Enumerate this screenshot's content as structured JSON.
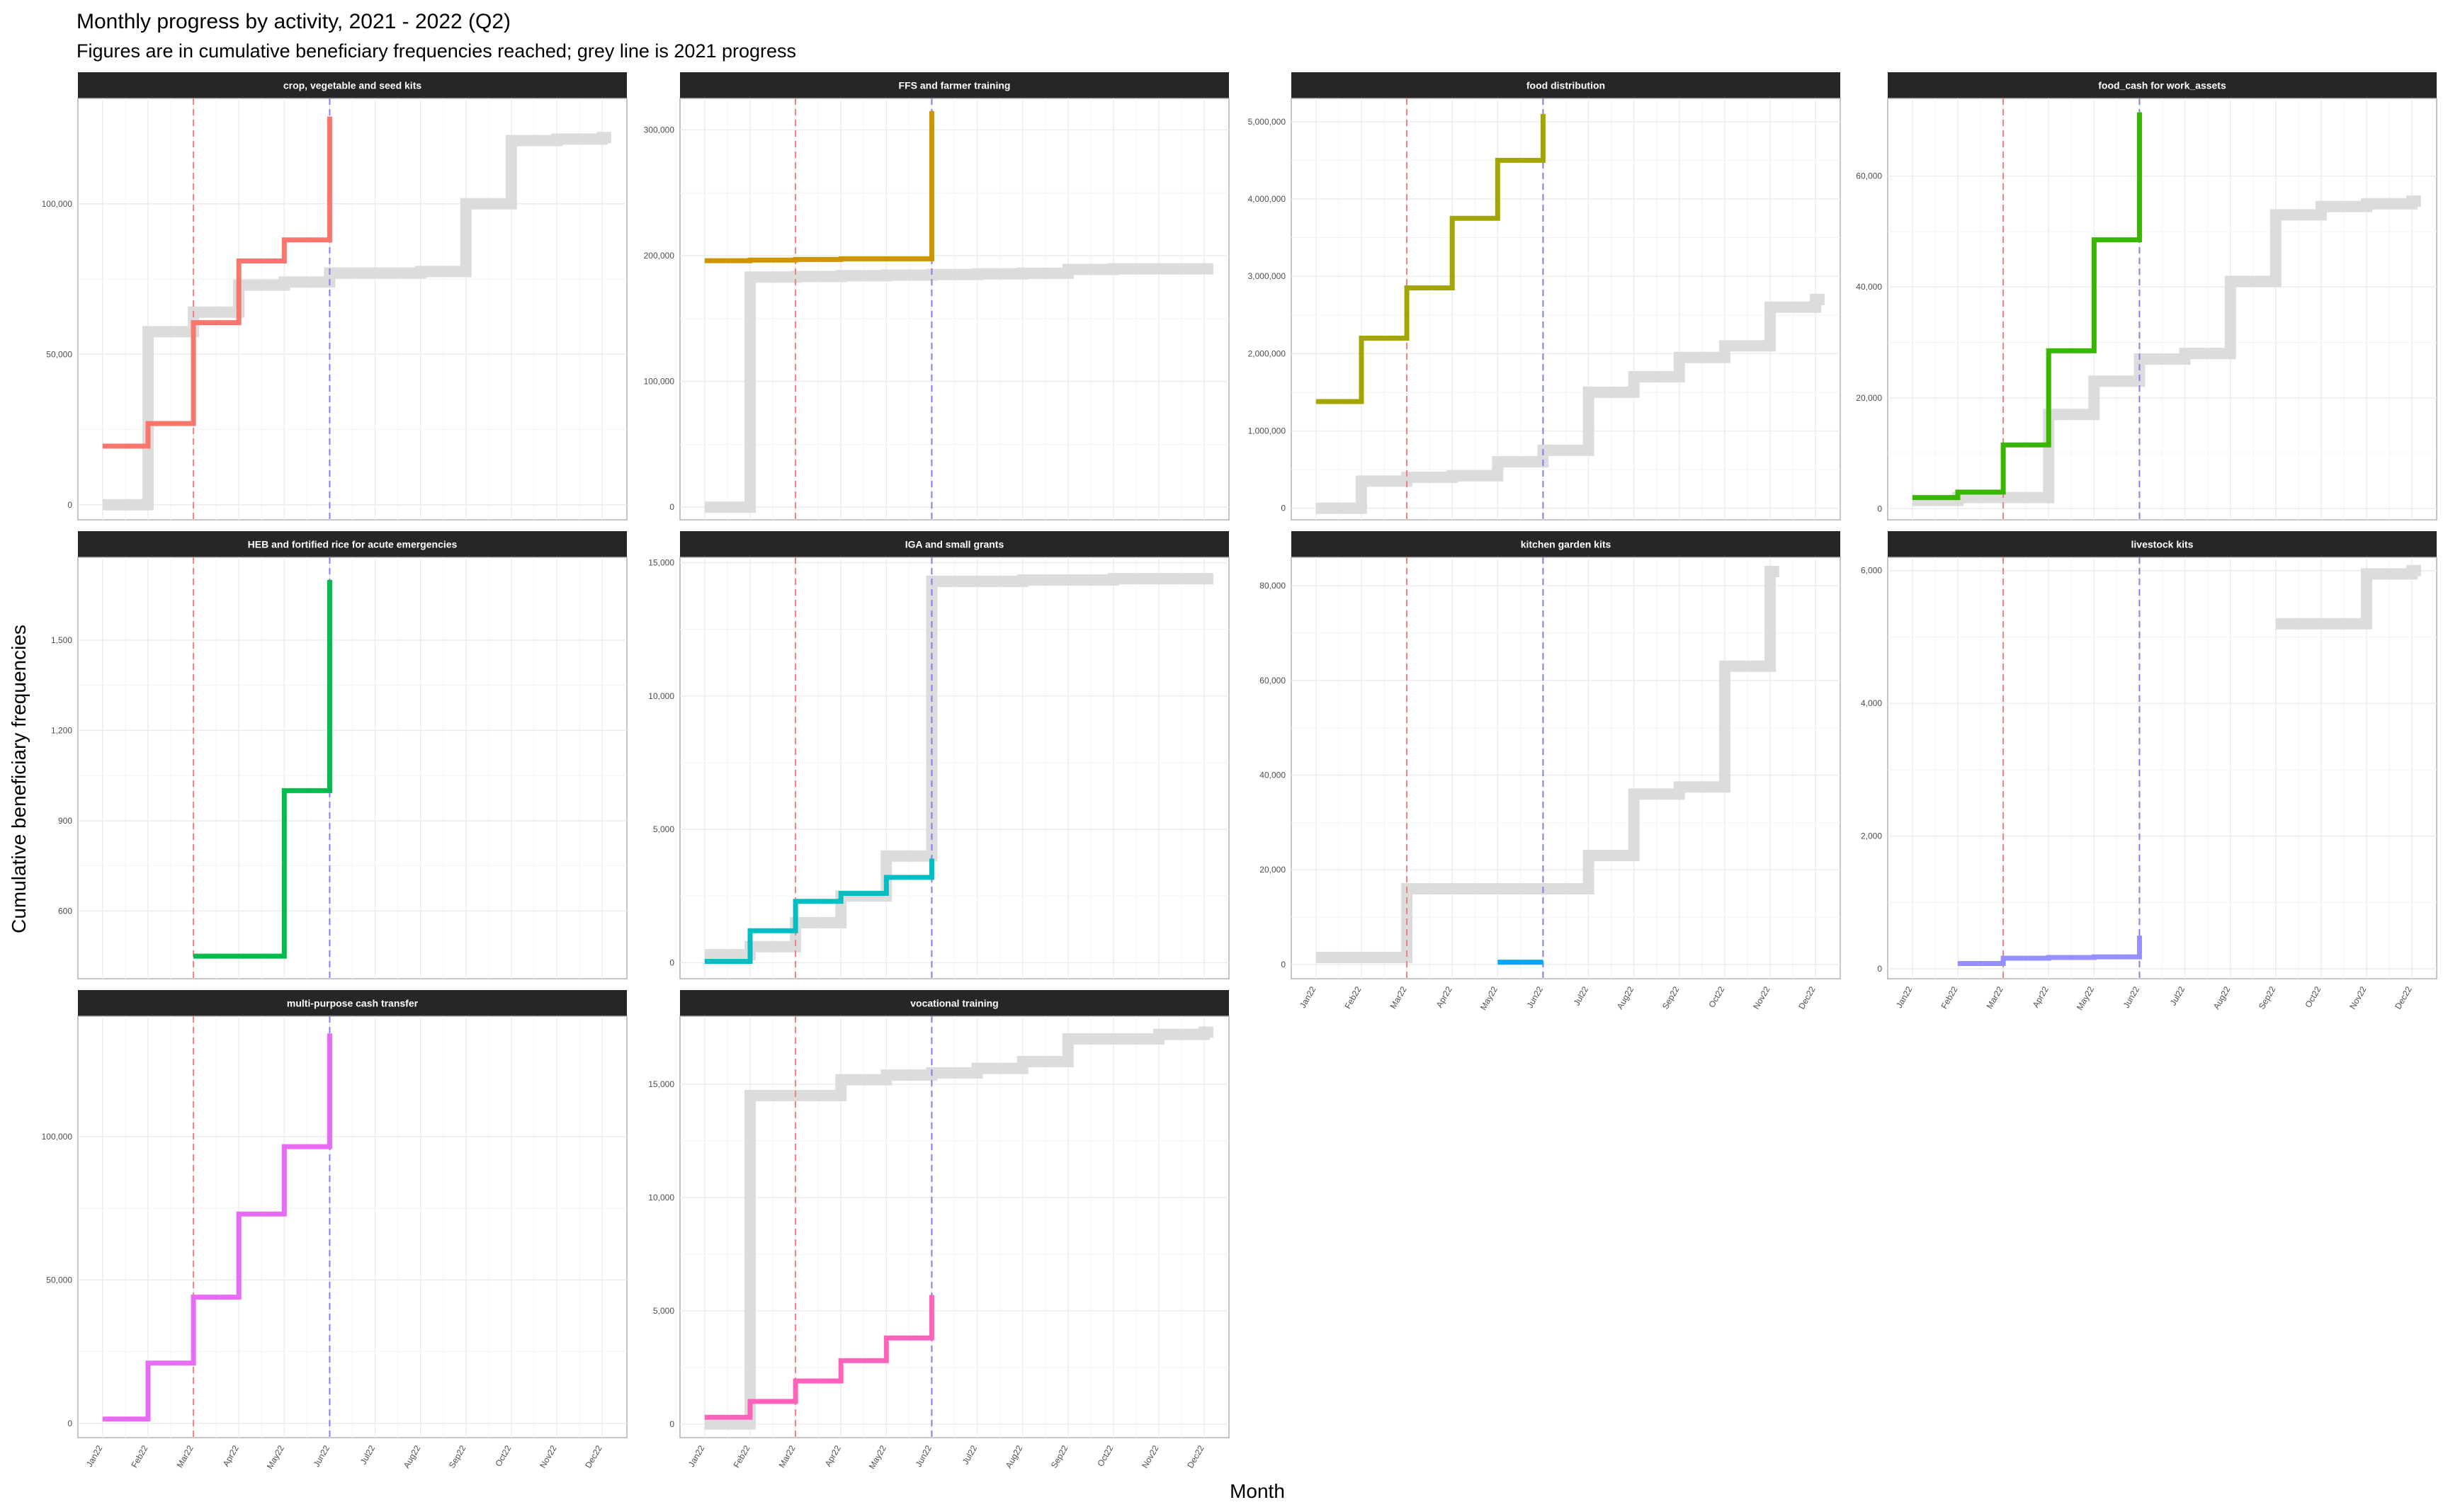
{
  "title": "Monthly progress by activity, 2021 - 2022 (Q2)",
  "subtitle": "Figures are in cumulative beneficiary frequencies reached; grey line is 2021 progress",
  "xlabel": "Month",
  "ylabel": "Cumulative beneficiary frequencies",
  "colors": {
    "baseline_2021": "#dcdcdc",
    "q1_end_line": "#f08080",
    "q2_end_line": "#8080ee",
    "strip_bg": "#262626",
    "grid": "#ebebeb",
    "panel_border": "#b3b3b3"
  },
  "chart_data": {
    "type": "line",
    "layout": "facet_wrap",
    "ncol": 4,
    "months": [
      "Jan22",
      "Feb22",
      "Mar22",
      "Apr22",
      "May22",
      "Jun22",
      "Jul22",
      "Aug22",
      "Sep22",
      "Oct22",
      "Nov22",
      "Dec22"
    ],
    "vlines": [
      "Mar22",
      "Jun22"
    ],
    "grid": true,
    "facets": [
      {
        "label": "crop, vegetable and seed kits",
        "ylim": [
          -5000,
          135000
        ],
        "yticks": [
          0,
          50000,
          100000
        ],
        "ytick_labels": [
          "0",
          "50,000",
          "100,000"
        ],
        "color": "#f8766d",
        "series_2022": [
          19500,
          27000,
          60500,
          81000,
          88000,
          129000
        ],
        "series_2021": [
          0,
          57500,
          64000,
          73000,
          74000,
          77000,
          77000,
          77500,
          100000,
          121000,
          121500,
          122000
        ]
      },
      {
        "label": "FFS and farmer training",
        "ylim": [
          -10000,
          325000
        ],
        "yticks": [
          0,
          100000,
          200000,
          300000
        ],
        "ytick_labels": [
          "0",
          "100,000",
          "200,000",
          "300,000"
        ],
        "color": "#cd9600",
        "series_2022": [
          196000,
          196500,
          197000,
          197500,
          197500,
          315000
        ],
        "series_2021": [
          0,
          183000,
          183500,
          184000,
          184500,
          185000,
          185500,
          186000,
          189000,
          189500,
          189500,
          189500
        ]
      },
      {
        "label": "food distribution",
        "ylim": [
          -150000,
          5300000
        ],
        "yticks": [
          0,
          1000000,
          2000000,
          3000000,
          4000000,
          5000000
        ],
        "ytick_labels": [
          "0",
          "1,000,000",
          "2,000,000",
          "3,000,000",
          "4,000,000",
          "5,000,000"
        ],
        "color": "#a3a500",
        "series_2022": [
          1380000,
          2200000,
          2850000,
          3750000,
          4500000,
          5100000
        ],
        "series_2021": [
          0,
          350000,
          400000,
          420000,
          600000,
          750000,
          1500000,
          1700000,
          1950000,
          2100000,
          2600000,
          2700000
        ]
      },
      {
        "label": "food_cash for work_assets",
        "ylim": [
          -2000,
          74000
        ],
        "yticks": [
          0,
          20000,
          40000,
          60000
        ],
        "ytick_labels": [
          "0",
          "20,000",
          "40,000",
          "60,000"
        ],
        "color": "#39b600",
        "series_2022": [
          2000,
          3000,
          11500,
          28500,
          48500,
          71500
        ],
        "series_2021": [
          1500,
          2000,
          2000,
          17000,
          23000,
          27000,
          28000,
          41000,
          53000,
          54500,
          55000,
          55500
        ]
      },
      {
        "label": "HEB and fortified rice for acute emergencies",
        "ylim": [
          375,
          1775
        ],
        "yticks": [
          600,
          900,
          1200,
          1500
        ],
        "ytick_labels": [
          "600",
          "900",
          "1,200",
          "1,500"
        ],
        "color": "#00bb4e",
        "series_2022": [
          null,
          null,
          450,
          450,
          1000,
          1700
        ],
        "series_2021": []
      },
      {
        "label": "IGA and small grants",
        "ylim": [
          -600,
          15200
        ],
        "yticks": [
          0,
          5000,
          10000,
          15000
        ],
        "ytick_labels": [
          "0",
          "5,000",
          "10,000",
          "15,000"
        ],
        "color": "#00bfc4",
        "series_2022": [
          50,
          1200,
          2300,
          2600,
          3200,
          3900
        ],
        "series_2021": [
          300,
          600,
          1500,
          2500,
          4000,
          14300,
          14300,
          14350,
          14350,
          14400,
          14400,
          14400
        ]
      },
      {
        "label": "kitchen garden kits",
        "ylim": [
          -3000,
          86000
        ],
        "yticks": [
          0,
          20000,
          40000,
          60000,
          80000
        ],
        "ytick_labels": [
          "0",
          "20,000",
          "40,000",
          "60,000",
          "80,000"
        ],
        "color": "#00a9ff",
        "series_2022": [
          null,
          null,
          null,
          null,
          500,
          500
        ],
        "series_2021": [
          1500,
          1500,
          16000,
          16000,
          16000,
          16000,
          23000,
          36000,
          37500,
          63000,
          83000,
          null
        ]
      },
      {
        "label": "livestock kits",
        "ylim": [
          -150,
          6200
        ],
        "yticks": [
          0,
          2000,
          4000,
          6000
        ],
        "ytick_labels": [
          "0",
          "2,000",
          "4,000",
          "6,000"
        ],
        "color": "#9590ff",
        "series_2022": [
          null,
          80,
          160,
          170,
          180,
          500
        ],
        "series_2021": [
          null,
          null,
          null,
          null,
          null,
          null,
          null,
          null,
          5200,
          5200,
          5950,
          6000
        ]
      },
      {
        "label": "multi-purpose cash transfer",
        "ylim": [
          -5000,
          142000
        ],
        "yticks": [
          0,
          50000,
          100000
        ],
        "ytick_labels": [
          "0",
          "50,000",
          "100,000"
        ],
        "color": "#e76bf3",
        "series_2022": [
          1500,
          21000,
          44000,
          73000,
          96500,
          136000
        ],
        "series_2021": []
      },
      {
        "label": "vocational training",
        "ylim": [
          -600,
          18000
        ],
        "yticks": [
          0,
          5000,
          10000,
          15000
        ],
        "ytick_labels": [
          "0",
          "5,000",
          "10,000",
          "15,000"
        ],
        "color": "#ff62bc",
        "series_2022": [
          300,
          1000,
          1900,
          2800,
          3800,
          5700
        ],
        "series_2021": [
          0,
          14500,
          14500,
          15200,
          15400,
          15500,
          15700,
          16000,
          17000,
          17000,
          17200,
          17300
        ]
      }
    ]
  }
}
